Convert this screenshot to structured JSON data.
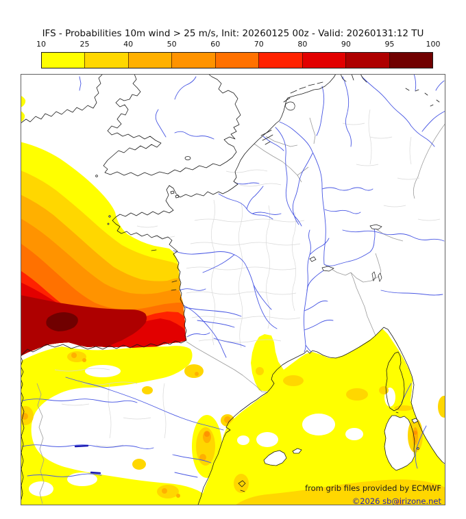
{
  "title": "IFS - Probabilities 10m wind > 25 m/s, Init: 20260125 00z - Valid: 20260131:12 TU",
  "colorbar": {
    "tick_labels": [
      "10",
      "25",
      "40",
      "50",
      "60",
      "70",
      "80",
      "90",
      "95",
      "100"
    ],
    "segment_colors": [
      "#FFFF00",
      "#FFD700",
      "#FFB000",
      "#FF9300",
      "#FF7100",
      "#FF2200",
      "#E20000",
      "#AE0000",
      "#700000"
    ]
  },
  "attribution": {
    "source_line": "from grib files provided by ECMWF",
    "copyright_line": "©2026 sb@irizone.net"
  },
  "palette": {
    "p10": "#FFFF00",
    "p25": "#FFD700",
    "p40": "#FFB000",
    "p50": "#FF9300",
    "p60": "#FF7100",
    "p70": "#FF2200",
    "p80": "#E20000",
    "p90": "#AE0000",
    "p95": "#700000",
    "coastline": "#1A1A1A",
    "river": "#4756E3",
    "reservoir": "#1A1AB4",
    "country_border": "#9A9A9A",
    "department_border": "#D8D8D8",
    "map_frame": "#606060",
    "title_color": "#111111",
    "attribution_color": "#1A1A1A",
    "copyright_color": "#2222B4"
  },
  "chart_data": {
    "type": "heatmap",
    "title": "IFS - Probabilities 10m wind > 25 m/s, Init: 20260125 00z - Valid: 20260131:12 TU",
    "variable": "Probability of 10m wind > 25 m/s",
    "model": "IFS",
    "init": "20260125 00z",
    "valid": "20260131:12 TU",
    "probability_thresholds_percent": [
      10,
      25,
      40,
      50,
      60,
      70,
      80,
      90,
      95,
      100
    ],
    "legend_colors": [
      "#FFFF00",
      "#FFD700",
      "#FFB000",
      "#FF9300",
      "#FF7100",
      "#FF2200",
      "#E20000",
      "#AE0000",
      "#700000"
    ],
    "legend_position": "top",
    "regions_read_from_map": [
      {
        "area": "Atlantic / Bay of Biscay off SW France and N Spain",
        "probability_percent": "70-100, maroon core 95-100"
      },
      {
        "area": "Atlantic band SW of Ireland and Brittany",
        "probability_percent": "10-60 concentric bands"
      },
      {
        "area": "Iberian Peninsula interior",
        "probability_percent": "scattered 10-50"
      },
      {
        "area": "East Spain / Valencia coast",
        "probability_percent": "25-60 spots"
      },
      {
        "area": "Gulf of Lion and western Mediterranean",
        "probability_percent": "10-40"
      },
      {
        "area": "East of Sardinia",
        "probability_percent": "40-60"
      },
      {
        "area": "British Isles, northern France, Germany, Alps",
        "probability_percent": "< 10 (white)"
      }
    ]
  }
}
